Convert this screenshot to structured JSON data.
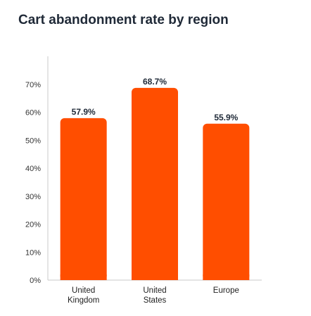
{
  "chart_data": {
    "type": "bar",
    "title": "Cart abandonment rate by region",
    "categories": [
      [
        "United",
        "Kingdom"
      ],
      [
        "United",
        "States"
      ],
      [
        "Europe"
      ]
    ],
    "values": [
      57.9,
      68.7,
      55.9
    ],
    "data_labels": [
      "57.9%",
      "68.7%",
      "55.9%"
    ],
    "y_ticks": [
      0,
      10,
      20,
      30,
      40,
      50,
      60,
      70
    ],
    "y_tick_labels": [
      "0%",
      "10%",
      "20%",
      "30%",
      "40%",
      "50%",
      "60%",
      "70%"
    ],
    "ylim": [
      0,
      80
    ],
    "xlabel": "",
    "ylabel": "",
    "grid": false,
    "bar_color": "#ff4e00"
  }
}
